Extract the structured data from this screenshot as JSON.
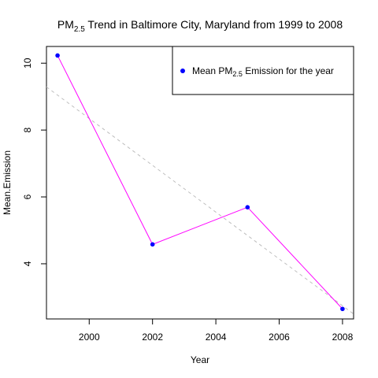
{
  "colors": {
    "line": "#ff00ff",
    "points": "#0000ff",
    "trend": "#bebebe",
    "axis": "#000000",
    "background": "#ffffff"
  },
  "chart_data": {
    "type": "line",
    "title": {
      "prefix": "PM",
      "subscript": "2.5",
      "suffix": " Trend in Baltimore City, Maryland from 1999 to 2008"
    },
    "xlabel": "Year",
    "ylabel": "Mean.Emission",
    "xlim": [
      1998.65,
      2008.35
    ],
    "ylim": [
      2.35,
      10.5
    ],
    "x_ticks": [
      2000,
      2002,
      2004,
      2006,
      2008
    ],
    "y_ticks": [
      4,
      6,
      8,
      10
    ],
    "grid": false,
    "legend_position": "top-right",
    "series": [
      {
        "name": {
          "prefix": "Mean PM",
          "subscript": "2.5",
          "suffix": " Emission for the year"
        },
        "x": [
          1999,
          2002,
          2005,
          2008
        ],
        "y": [
          10.23,
          4.58,
          5.69,
          2.65
        ]
      }
    ],
    "trend_line": {
      "style": "dashed",
      "x": [
        1998.65,
        2008.35
      ],
      "y": [
        9.29,
        2.5
      ]
    }
  }
}
